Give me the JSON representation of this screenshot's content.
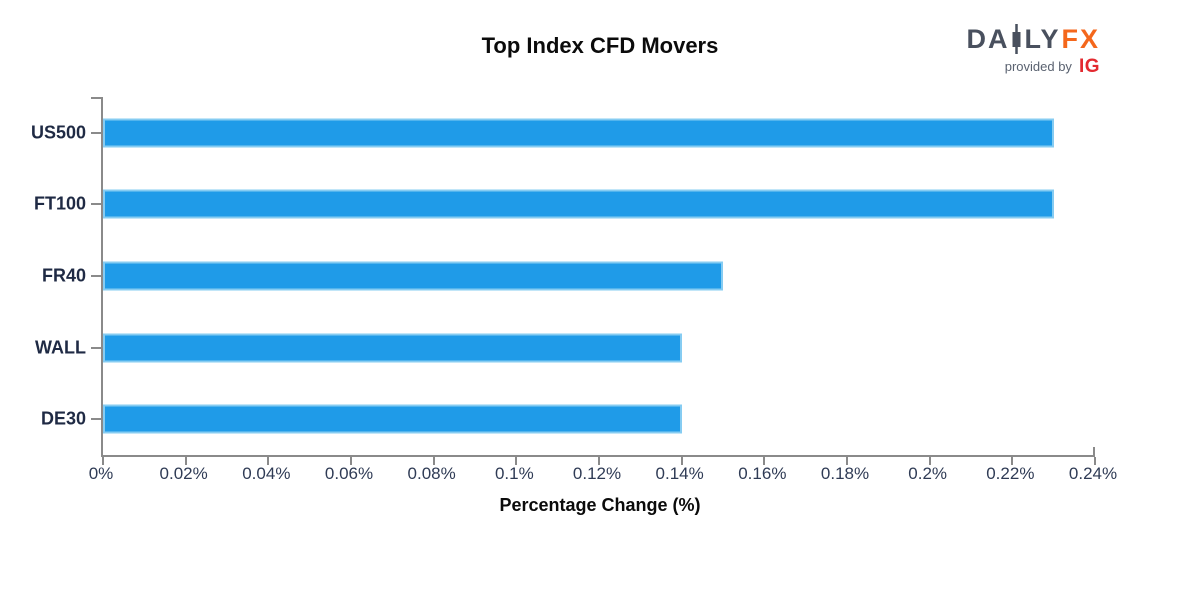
{
  "header": {
    "title": "Top Index CFD Movers",
    "logo": {
      "brand_left": "DA",
      "brand_right": "LY",
      "brand_accent": "FX",
      "tagline": "provided by",
      "partner": "IG",
      "colors": {
        "brand": "#49505E",
        "accent": "#F4671C",
        "tagline": "#5A6270",
        "partner": "#E32A30"
      }
    }
  },
  "chart_data": {
    "type": "bar",
    "orientation": "horizontal",
    "title": "Top Index CFD Movers",
    "xlabel": "Percentage Change (%)",
    "ylabel": "",
    "categories": [
      "US500",
      "FT100",
      "FR40",
      "WALL",
      "DE30"
    ],
    "values": [
      0.23,
      0.23,
      0.15,
      0.14,
      0.14
    ],
    "value_unit": "%",
    "xlim": [
      0,
      0.24
    ],
    "xtick_values": [
      0,
      0.02,
      0.04,
      0.06,
      0.08,
      0.1,
      0.12,
      0.14,
      0.16,
      0.18,
      0.2,
      0.22,
      0.24
    ],
    "xtick_labels": [
      "0%",
      "0.02%",
      "0.04%",
      "0.06%",
      "0.08%",
      "0.1%",
      "0.12%",
      "0.14%",
      "0.16%",
      "0.18%",
      "0.2%",
      "0.22%",
      "0.24%"
    ],
    "grid": false,
    "legend": false,
    "colors": {
      "bar_fill": "#1F9BE8",
      "bar_edge": "#86CCF2",
      "axis": "#8a8a8a",
      "tick_label": "#2F3B55",
      "category_label": "#1F2A44",
      "title": "#0b0b0b"
    }
  }
}
